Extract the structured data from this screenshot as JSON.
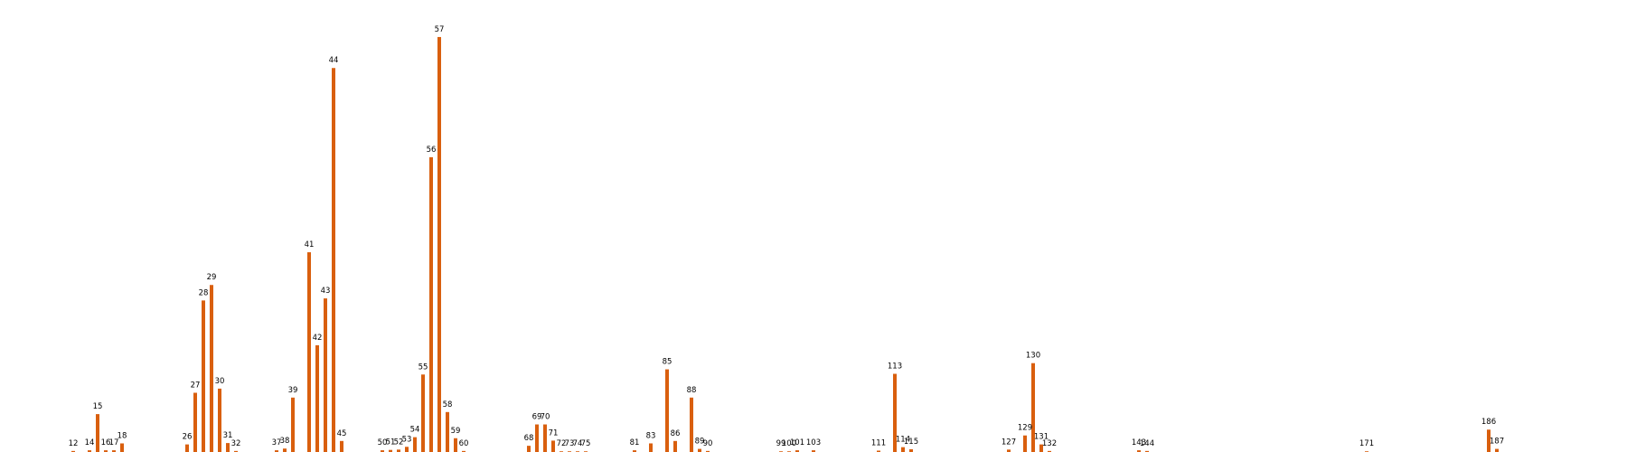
{
  "chart_data": {
    "type": "bar",
    "color": "#d95f0e",
    "grid": false,
    "legend": "none",
    "categories": [
      "12",
      "14",
      "15",
      "16",
      "17",
      "18",
      "26",
      "27",
      "28",
      "29",
      "30",
      "31",
      "32",
      "37",
      "38",
      "39",
      "41",
      "42",
      "43",
      "44",
      "45",
      "50",
      "51",
      "52",
      "53",
      "54",
      "55",
      "56",
      "57",
      "58",
      "59",
      "60",
      "68",
      "69",
      "70",
      "71",
      "72",
      "73",
      "74",
      "75",
      "81",
      "83",
      "85",
      "86",
      "88",
      "89",
      "90",
      "99",
      "100",
      "101",
      "103",
      "111",
      "113",
      "114",
      "115",
      "127",
      "129",
      "130",
      "131",
      "132",
      "143",
      "144",
      "171",
      "186",
      "187"
    ],
    "values": [
      0.3,
      0.5,
      11,
      0.5,
      0.5,
      2.5,
      2.2,
      17.2,
      44,
      48.5,
      18.4,
      2.6,
      0.3,
      0.5,
      1,
      15.8,
      58,
      31,
      44.6,
      111.5,
      3.2,
      0.5,
      0.6,
      0.7,
      1.5,
      4.3,
      22.5,
      85.6,
      120.5,
      11.6,
      4,
      0.3,
      1.8,
      8,
      8,
      3.3,
      0.2,
      0.2,
      0.2,
      0.2,
      0.5,
      2.5,
      24,
      3.2,
      15.8,
      0.9,
      0.3,
      0.2,
      0.2,
      0.5,
      0.5,
      0.4,
      22.7,
      1.4,
      0.8,
      0.7,
      4.8,
      25.8,
      2.2,
      0.3,
      0.5,
      0.3,
      0.2,
      6.5,
      0.9
    ],
    "ylim": [
      0,
      126
    ],
    "xlim": [
      3,
      203
    ],
    "xlabel": "",
    "ylabel": "",
    "title": ""
  }
}
